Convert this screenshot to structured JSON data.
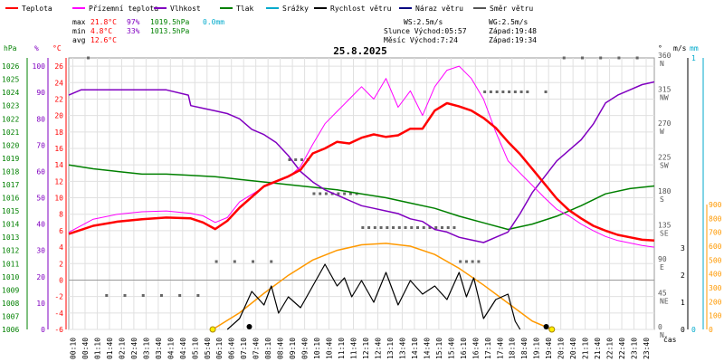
{
  "chart_data": {
    "type": "line",
    "title": "25.8.2025",
    "legend": [
      {
        "name": "Teplota",
        "color": "#ff0000"
      },
      {
        "name": "Přízemní teplota",
        "color": "#ff00ff"
      },
      {
        "name": "Vlhkost",
        "color": "#8000c0"
      },
      {
        "name": "Tlak",
        "color": "#008000"
      },
      {
        "name": "Srážky",
        "color": "#00aacc"
      },
      {
        "name": "Rychlost větru",
        "color": "#000000"
      },
      {
        "name": "Náraz větru",
        "color": "#000080"
      },
      {
        "name": "Směr větru",
        "color": "#555555"
      }
    ],
    "stats": {
      "max": {
        "label": "max",
        "temp": "21.8°C",
        "hum": "97%",
        "press": "1019.5hPa",
        "rain": "0.0mm"
      },
      "min": {
        "label": "min",
        "temp": "4.8°C",
        "hum": "33%",
        "press": "1013.5hPa"
      },
      "avg": {
        "label": "avg",
        "temp": "12.6°C"
      }
    },
    "info": {
      "ws": "WS:2.5m/s",
      "wg": "WG:2.5m/s",
      "sun": "Slunce Východ:05:57",
      "sun_set": "Západ:19:48",
      "moon": "Měsíc  Východ:7:24",
      "moon_set": "Západ:19:34"
    },
    "axis_units": {
      "hpa": "hPa",
      "pct": "%",
      "degc": "°C",
      "deg": "°",
      "ms": "m/s",
      "mm": "mm",
      "time": "čas"
    },
    "x_ticks": [
      "00:10",
      "00:40",
      "01:10",
      "01:40",
      "02:10",
      "02:40",
      "03:10",
      "03:40",
      "04:10",
      "04:40",
      "05:10",
      "05:40",
      "06:10",
      "06:40",
      "07:10",
      "07:40",
      "08:10",
      "08:40",
      "09:10",
      "09:40",
      "10:10",
      "10:40",
      "11:10",
      "11:40",
      "12:10",
      "12:40",
      "13:10",
      "13:40",
      "14:10",
      "14:40",
      "15:10",
      "15:40",
      "16:10",
      "16:40",
      "17:10",
      "17:40",
      "18:10",
      "18:40",
      "19:10",
      "19:40",
      "20:10",
      "20:40",
      "21:10",
      "21:40",
      "22:10",
      "22:40",
      "23:10",
      "23:40"
    ],
    "pressure_ticks": [
      "1006",
      "1007",
      "1008",
      "1009",
      "1010",
      "1011",
      "1012",
      "1013",
      "1014",
      "1015",
      "1016",
      "1017",
      "1018",
      "1019",
      "1020",
      "1021",
      "1022",
      "1023",
      "1024",
      "1025",
      "1026"
    ],
    "humidity_ticks": [
      "0",
      "10",
      "20",
      "30",
      "40",
      "50",
      "60",
      "70",
      "80",
      "90",
      "100"
    ],
    "temp_ticks": [
      "-6",
      "-4",
      "-2",
      "0",
      "2",
      "4",
      "6",
      "8",
      "10",
      "12",
      "14",
      "16",
      "18",
      "20",
      "22",
      "24",
      "26"
    ],
    "direction_ticks": [
      {
        "deg": "0",
        "dir": "N"
      },
      {
        "deg": "45",
        "dir": "NE"
      },
      {
        "deg": "90",
        "dir": "E"
      },
      {
        "deg": "135",
        "dir": "SE"
      },
      {
        "deg": "180",
        "dir": "S"
      },
      {
        "deg": "225",
        "dir": "SW"
      },
      {
        "deg": "270",
        "dir": "W"
      },
      {
        "deg": "315",
        "dir": "NW"
      },
      {
        "deg": "360",
        "dir": "N"
      }
    ],
    "wind_ticks": [
      "0",
      "1",
      "2",
      "3"
    ],
    "rain_ticks": [
      "0",
      "1"
    ],
    "solar_ticks": [
      "0",
      "100",
      "200",
      "300",
      "400",
      "500",
      "600",
      "700",
      "800",
      "900"
    ],
    "xlim_hours": [
      0,
      24
    ],
    "temp_ylim": [
      -6,
      27
    ],
    "series": [
      {
        "name": "Teplota",
        "x": [
          0,
          1,
          2,
          3,
          4,
          5,
          5.5,
          6,
          6.5,
          7,
          8,
          9,
          9.5,
          10,
          10.5,
          11,
          11.5,
          12,
          12.5,
          13,
          13.5,
          14,
          14.5,
          15,
          15.5,
          16,
          16.5,
          17,
          17.5,
          18,
          18.5,
          19,
          19.5,
          20,
          20.5,
          21,
          21.5,
          22,
          22.5,
          23,
          23.5,
          24
        ],
        "y": [
          5.6,
          6.6,
          7.1,
          7.4,
          7.6,
          7.5,
          7.0,
          6.2,
          7.2,
          8.8,
          11.4,
          12.6,
          13.4,
          15.4,
          16.0,
          16.8,
          16.6,
          17.3,
          17.7,
          17.4,
          17.6,
          18.4,
          18.4,
          20.6,
          21.5,
          21.1,
          20.6,
          19.7,
          18.5,
          16.8,
          15.3,
          13.5,
          11.7,
          9.9,
          8.5,
          7.5,
          6.6,
          6.0,
          5.5,
          5.2,
          4.9,
          4.8
        ]
      },
      {
        "name": "Přízemní teplota",
        "x": [
          0,
          1,
          2,
          3,
          4,
          5,
          5.5,
          6,
          6.5,
          7,
          8,
          9,
          9.5,
          10,
          10.5,
          11,
          11.5,
          12,
          12.5,
          13,
          13.5,
          14,
          14.5,
          15,
          15.5,
          16,
          16.5,
          17,
          17.5,
          18,
          18.5,
          19,
          19.5,
          20,
          20.5,
          21,
          21.5,
          22,
          22.5,
          23,
          23.5,
          24
        ],
        "y": [
          5.8,
          7.4,
          8.0,
          8.3,
          8.4,
          8.1,
          7.8,
          7.0,
          7.6,
          9.5,
          11.3,
          12.5,
          13.8,
          16.5,
          19.0,
          20.5,
          22.0,
          23.5,
          22.0,
          24.5,
          21.0,
          23.0,
          20.0,
          23.5,
          25.5,
          26.0,
          24.5,
          22.0,
          18.0,
          14.5,
          13.0,
          11.5,
          10.0,
          8.6,
          7.8,
          6.8,
          6.0,
          5.3,
          4.8,
          4.5,
          4.2,
          4.0
        ]
      },
      {
        "name": "Vlhkost",
        "x": [
          0,
          0.5,
          1,
          2,
          3,
          4,
          4.9,
          5,
          5.5,
          6,
          6.5,
          7,
          7.5,
          8,
          8.5,
          9,
          9.5,
          10,
          10.5,
          11,
          11.5,
          12,
          12.5,
          13,
          13.5,
          14,
          14.5,
          15,
          15.5,
          16,
          16.5,
          17,
          17.5,
          18,
          18.5,
          19,
          19.5,
          20,
          20.5,
          21,
          21.5,
          22,
          22.5,
          23,
          23.5,
          24
        ],
        "y": [
          89,
          91,
          91,
          91,
          91,
          91,
          89,
          85,
          84,
          83,
          82,
          80,
          76,
          74,
          71,
          66,
          60,
          56,
          53,
          51,
          49,
          47,
          46,
          45,
          44,
          42,
          41,
          38,
          37,
          35,
          34,
          33,
          35,
          37,
          44,
          52,
          58,
          64,
          68,
          72,
          78,
          86,
          89,
          91,
          93,
          94
        ]
      },
      {
        "name": "Tlak",
        "x": [
          0,
          1,
          2,
          3,
          4,
          5,
          6,
          7,
          8,
          9,
          10,
          11,
          12,
          13,
          14,
          15,
          16,
          17,
          18,
          19,
          20,
          21,
          22,
          23,
          24
        ],
        "y": [
          1018.5,
          1018.2,
          1018.0,
          1017.8,
          1017.8,
          1017.7,
          1017.6,
          1017.4,
          1017.2,
          1017.0,
          1016.8,
          1016.6,
          1016.3,
          1016.0,
          1015.6,
          1015.2,
          1014.6,
          1014.1,
          1013.6,
          1014.0,
          1014.6,
          1015.4,
          1016.3,
          1016.7,
          1016.9
        ]
      },
      {
        "name": "Rychlost větru",
        "x": [
          6.5,
          7,
          7.5,
          8,
          8.3,
          8.6,
          9,
          9.5,
          10,
          10.5,
          11,
          11.3,
          11.6,
          12,
          12.5,
          13,
          13.5,
          14,
          14.5,
          15,
          15.5,
          16,
          16.3,
          16.6,
          17,
          17.5,
          18,
          18.3,
          18.5
        ],
        "y": [
          0,
          0.4,
          1.4,
          0.9,
          1.6,
          0.6,
          1.2,
          0.8,
          1.6,
          2.4,
          1.6,
          1.9,
          1.2,
          1.8,
          1.0,
          2.1,
          0.9,
          1.8,
          1.3,
          1.6,
          1.1,
          2.1,
          1.2,
          1.9,
          0.4,
          1.1,
          1.3,
          0.3,
          0
        ]
      }
    ],
    "solar": {
      "x": [
        5.9,
        7,
        8,
        9,
        10,
        11,
        12,
        13,
        14,
        15,
        16,
        17,
        18,
        19,
        19.8
      ],
      "y": [
        0,
        120,
        260,
        390,
        500,
        570,
        610,
        620,
        600,
        540,
        440,
        320,
        190,
        60,
        0
      ]
    },
    "wind_direction": {
      "x": [
        0.5,
        1,
        2,
        3,
        4,
        5,
        6,
        9,
        10,
        11,
        12,
        13,
        14,
        15,
        16,
        17,
        18,
        19,
        20,
        21,
        22,
        23,
        23.5
      ],
      "y": [
        360,
        45,
        45,
        45,
        45,
        45,
        90,
        225,
        180,
        180,
        135,
        135,
        135,
        135,
        90,
        315,
        315,
        315,
        360,
        360,
        360,
        360,
        360
      ]
    }
  }
}
